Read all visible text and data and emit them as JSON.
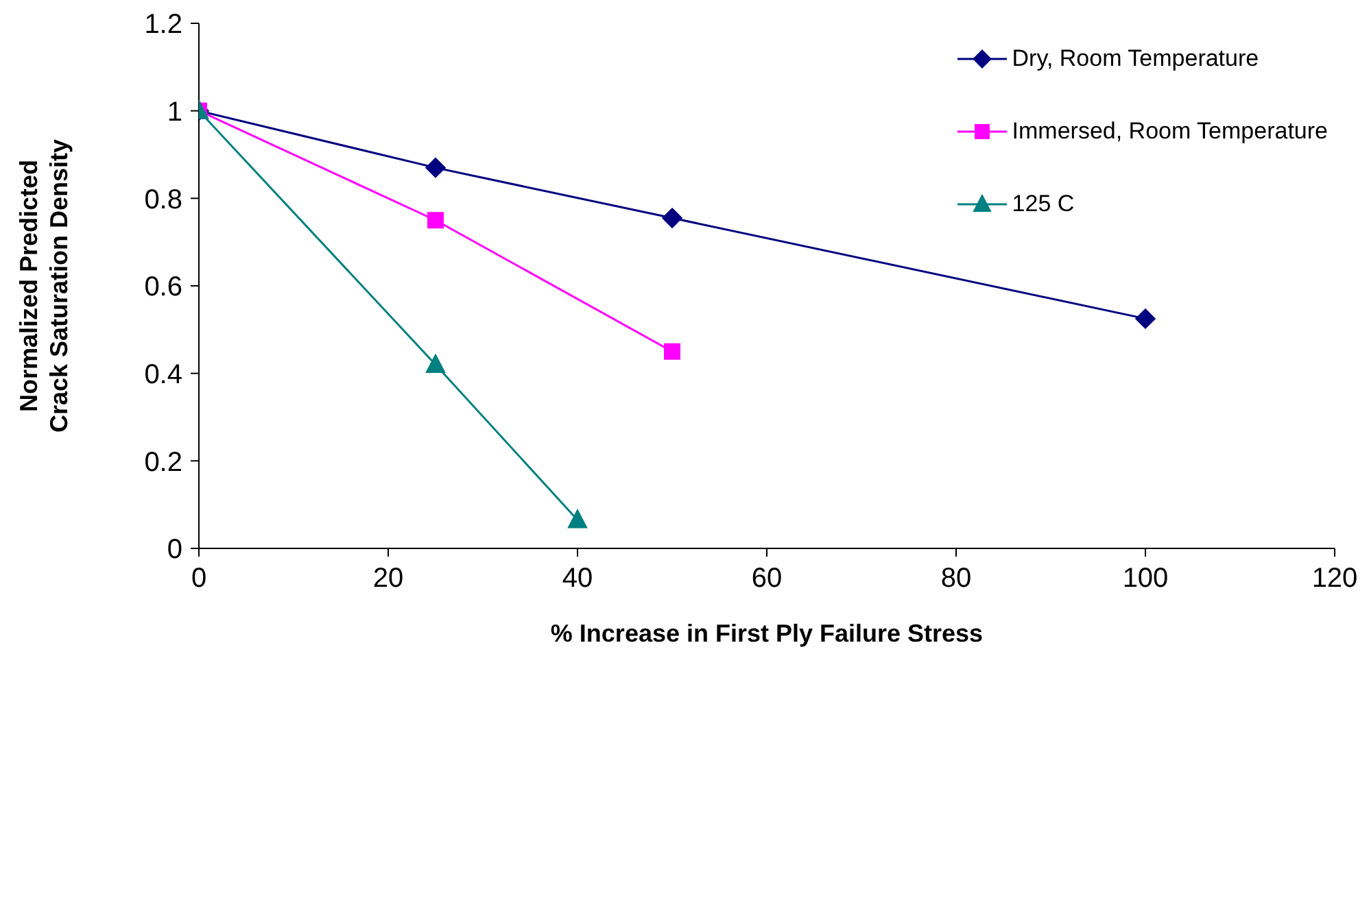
{
  "chart_data": {
    "type": "line",
    "xlabel": "% Increase in First Ply Failure Stress",
    "ylabel": "Normalized Predicted Crack Saturation Density",
    "xlim": [
      0,
      120
    ],
    "xticks": [
      0,
      20,
      40,
      60,
      80,
      100,
      120
    ],
    "ylim": [
      0,
      1.2
    ],
    "yticks": [
      0,
      0.2,
      0.4,
      0.6,
      0.8,
      1,
      1.2
    ],
    "grid": false,
    "legend": "top right",
    "series": [
      {
        "name": "Dry, Room Temperature",
        "color": "#000080",
        "marker": "diamond",
        "x": [
          0,
          25,
          50,
          100
        ],
        "values": [
          1,
          0.87,
          0.755,
          0.525
        ]
      },
      {
        "name": "Immersed, Room Temperature",
        "color": "#ff00ff",
        "marker": "square",
        "x": [
          0,
          25,
          50
        ],
        "values": [
          1,
          0.75,
          0.45
        ]
      },
      {
        "name": "125 C",
        "color": "#008080",
        "marker": "triangle",
        "x": [
          0,
          25,
          40
        ],
        "values": [
          1,
          0.42,
          0.065
        ]
      }
    ]
  }
}
